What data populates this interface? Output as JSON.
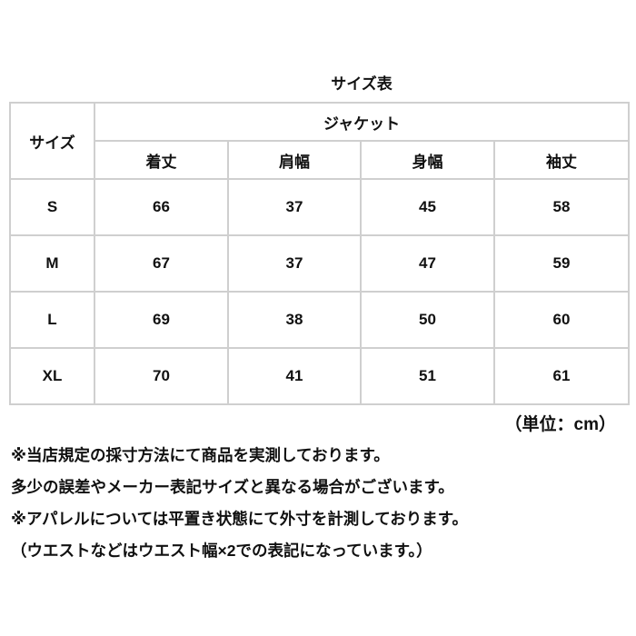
{
  "title": "サイズ表",
  "table": {
    "size_header": "サイズ",
    "group_header": "ジャケット",
    "columns": [
      "着丈",
      "肩幅",
      "身幅",
      "袖丈"
    ],
    "rows": [
      {
        "size": "S",
        "values": [
          "66",
          "37",
          "45",
          "58"
        ]
      },
      {
        "size": "M",
        "values": [
          "67",
          "37",
          "47",
          "59"
        ]
      },
      {
        "size": "L",
        "values": [
          "69",
          "38",
          "50",
          "60"
        ]
      },
      {
        "size": "XL",
        "values": [
          "70",
          "41",
          "51",
          "61"
        ]
      }
    ]
  },
  "unit": "（単位：cm）",
  "notes": [
    "※当店規定の採寸方法にて商品を実測しております。",
    "多少の誤差やメーカー表記サイズと異なる場合がございます。",
    "※アパレルについては平置き状態にて外寸を計測しております。",
    "（ウエストなどはウエスト幅×2での表記になっています。）"
  ]
}
